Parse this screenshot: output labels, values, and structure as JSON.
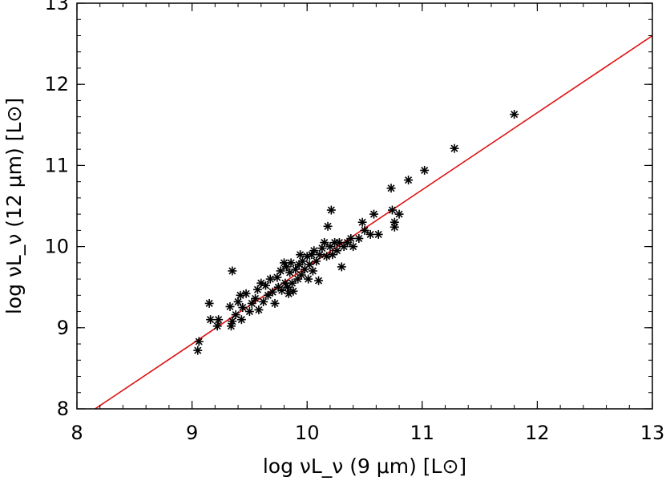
{
  "chart_data": {
    "type": "scatter",
    "xlabel": "log νL_ν (9 μm) [L⊙]",
    "ylabel": "log νL_ν (12 μm) [L⊙]",
    "xlim": [
      8,
      13
    ],
    "ylim": [
      8,
      13
    ],
    "x_ticks": [
      "8",
      "9",
      "10",
      "11",
      "12",
      "13"
    ],
    "y_ticks": [
      "8",
      "9",
      "10",
      "11",
      "12",
      "13"
    ],
    "grid": false,
    "marker": "asterisk",
    "colors": {
      "points": "#000000",
      "fit_line": "#e01010",
      "axes": "#000000"
    },
    "fit_line": {
      "slope": 0.95,
      "intercept": 0.25
    },
    "points": [
      [
        9.05,
        8.72
      ],
      [
        9.06,
        8.83
      ],
      [
        9.15,
        9.3
      ],
      [
        9.16,
        9.1
      ],
      [
        9.22,
        9.02
      ],
      [
        9.23,
        9.1
      ],
      [
        9.33,
        9.26
      ],
      [
        9.34,
        9.02
      ],
      [
        9.35,
        9.08
      ],
      [
        9.35,
        9.7
      ],
      [
        9.38,
        9.16
      ],
      [
        9.4,
        9.32
      ],
      [
        9.42,
        9.4
      ],
      [
        9.43,
        9.1
      ],
      [
        9.44,
        9.25
      ],
      [
        9.47,
        9.42
      ],
      [
        9.5,
        9.2
      ],
      [
        9.52,
        9.3
      ],
      [
        9.55,
        9.36
      ],
      [
        9.57,
        9.47
      ],
      [
        9.58,
        9.22
      ],
      [
        9.6,
        9.55
      ],
      [
        9.62,
        9.32
      ],
      [
        9.64,
        9.52
      ],
      [
        9.66,
        9.4
      ],
      [
        9.68,
        9.6
      ],
      [
        9.7,
        9.44
      ],
      [
        9.72,
        9.3
      ],
      [
        9.74,
        9.62
      ],
      [
        9.75,
        9.5
      ],
      [
        9.77,
        9.7
      ],
      [
        9.78,
        9.46
      ],
      [
        9.8,
        9.8
      ],
      [
        9.81,
        9.55
      ],
      [
        9.82,
        9.75
      ],
      [
        9.83,
        9.5
      ],
      [
        9.84,
        9.42
      ],
      [
        9.85,
        9.68
      ],
      [
        9.86,
        9.8
      ],
      [
        9.87,
        9.55
      ],
      [
        9.88,
        9.45
      ],
      [
        9.9,
        9.72
      ],
      [
        9.92,
        9.6
      ],
      [
        9.93,
        9.78
      ],
      [
        9.94,
        9.9
      ],
      [
        9.95,
        9.65
      ],
      [
        9.96,
        9.82
      ],
      [
        9.98,
        9.72
      ],
      [
        10.0,
        9.88
      ],
      [
        10.01,
        9.6
      ],
      [
        10.02,
        9.78
      ],
      [
        10.04,
        9.9
      ],
      [
        10.05,
        9.7
      ],
      [
        10.06,
        9.95
      ],
      [
        10.08,
        9.82
      ],
      [
        10.1,
        9.58
      ],
      [
        10.11,
        9.9
      ],
      [
        10.13,
        9.98
      ],
      [
        10.15,
        10.05
      ],
      [
        10.17,
        9.88
      ],
      [
        10.18,
        10.25
      ],
      [
        10.2,
        10.0
      ],
      [
        10.21,
        10.45
      ],
      [
        10.22,
        9.9
      ],
      [
        10.24,
        10.05
      ],
      [
        10.26,
        9.95
      ],
      [
        10.28,
        10.05
      ],
      [
        10.3,
        9.75
      ],
      [
        10.32,
        10.0
      ],
      [
        10.35,
        10.05
      ],
      [
        10.38,
        10.1
      ],
      [
        10.4,
        10.0
      ],
      [
        10.45,
        10.1
      ],
      [
        10.48,
        10.3
      ],
      [
        10.5,
        10.2
      ],
      [
        10.55,
        10.15
      ],
      [
        10.58,
        10.4
      ],
      [
        10.62,
        10.15
      ],
      [
        10.73,
        10.72
      ],
      [
        10.74,
        10.45
      ],
      [
        10.76,
        10.3
      ],
      [
        10.76,
        10.24
      ],
      [
        10.8,
        10.4
      ],
      [
        10.88,
        10.82
      ],
      [
        11.02,
        10.94
      ],
      [
        11.28,
        11.21
      ],
      [
        11.8,
        11.63
      ]
    ]
  }
}
